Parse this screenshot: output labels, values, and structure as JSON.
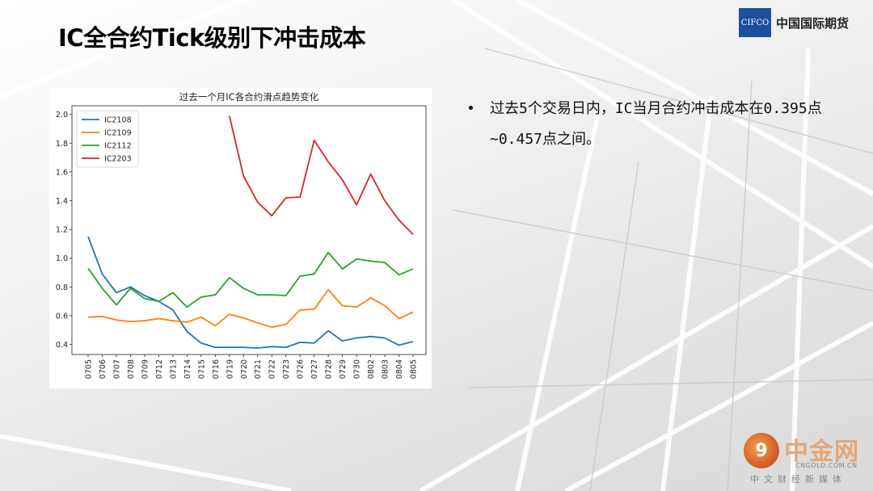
{
  "slide": {
    "title": "IC全合约Tick级别下冲击成本",
    "logo_box": "CIFCO",
    "logo_text": "中国国际期货",
    "bullet_mark": "•",
    "bullet_text": "过去5个交易日内，IC当月合约冲击成本在0.395点~0.457点之间。"
  },
  "watermark": {
    "mark": "9",
    "name": "中金网",
    "url": "CNGOLD.COM.CN",
    "tagline": "中文财经新媒体"
  },
  "colors": {
    "IC2108": "#1f77b4",
    "IC2109": "#ff7f0e",
    "IC2112": "#2ca02c",
    "IC2203": "#d62728",
    "logo": "#1d4f9c"
  },
  "chart_data": {
    "type": "line",
    "title": "过去一个月IC各合约滑点趋势变化",
    "xlabel": "",
    "ylabel": "",
    "legend_position": "top-left",
    "grid": false,
    "ylim": [
      0.33,
      2.06
    ],
    "yticks": [
      0.4,
      0.6,
      0.8,
      1.0,
      1.2,
      1.4,
      1.6,
      1.8,
      2.0
    ],
    "ytick_labels": [
      "0.4",
      "0.6",
      "0.8",
      "1.0",
      "1.2",
      "1.4",
      "1.6",
      "1.8",
      "2.0"
    ],
    "categories": [
      "0705",
      "0706",
      "0707",
      "0708",
      "0709",
      "0712",
      "0713",
      "0714",
      "0715",
      "0716",
      "0719",
      "0720",
      "0721",
      "0722",
      "0723",
      "0726",
      "0727",
      "0728",
      "0729",
      "0730",
      "0802",
      "0803",
      "0804",
      "0805"
    ],
    "series": [
      {
        "name": "IC2108",
        "values": [
          1.15,
          0.89,
          0.76,
          0.8,
          0.74,
          0.7,
          0.64,
          0.49,
          0.41,
          0.38,
          0.38,
          0.38,
          0.375,
          0.385,
          0.38,
          0.415,
          0.41,
          0.495,
          0.425,
          0.445,
          0.455,
          0.445,
          0.395,
          0.42
        ]
      },
      {
        "name": "IC2109",
        "values": [
          0.59,
          0.595,
          0.57,
          0.56,
          0.565,
          0.58,
          0.565,
          0.555,
          0.59,
          0.53,
          0.61,
          0.585,
          0.55,
          0.52,
          0.54,
          0.64,
          0.645,
          0.78,
          0.67,
          0.66,
          0.725,
          0.67,
          0.58,
          0.625
        ]
      },
      {
        "name": "IC2112",
        "values": [
          0.93,
          0.79,
          0.675,
          0.79,
          0.72,
          0.7,
          0.76,
          0.66,
          0.73,
          0.745,
          0.865,
          0.79,
          0.745,
          0.745,
          0.74,
          0.875,
          0.89,
          1.04,
          0.925,
          0.995,
          0.98,
          0.97,
          0.885,
          0.925
        ]
      },
      {
        "name": "IC2203",
        "values": [
          null,
          null,
          null,
          null,
          null,
          null,
          null,
          null,
          null,
          null,
          1.99,
          1.57,
          1.39,
          1.295,
          1.42,
          1.425,
          1.82,
          1.67,
          1.545,
          1.37,
          1.585,
          1.4,
          1.265,
          1.165
        ]
      }
    ]
  }
}
